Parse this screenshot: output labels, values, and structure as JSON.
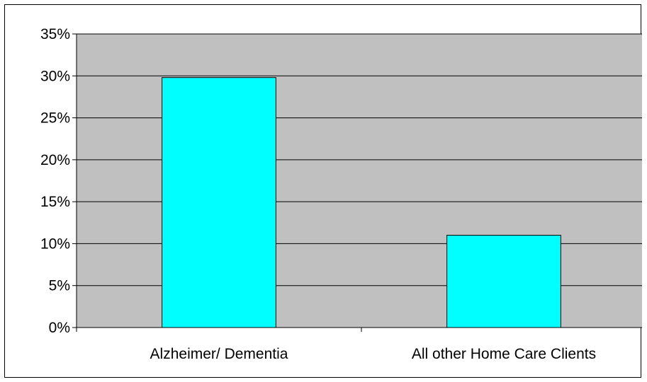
{
  "chart_data": {
    "type": "bar",
    "categories": [
      "Alzheimer/ Dementia",
      "All other Home Care Clients"
    ],
    "values": [
      29.8,
      11.0
    ],
    "y_unit": "%",
    "ylim": [
      0,
      35
    ],
    "y_ticks": [
      0,
      5,
      10,
      15,
      20,
      25,
      30,
      35
    ],
    "y_tick_labels": [
      "0%",
      "5%",
      "10%",
      "15%",
      "20%",
      "25%",
      "30%",
      "35%"
    ],
    "title": "",
    "xlabel": "",
    "ylabel": "",
    "grid": true,
    "legend": "none",
    "colors": {
      "bar_fill": "#00FFFF",
      "bar_stroke": "#000000",
      "plot_background": "#C0C0C0",
      "gridline": "#000000"
    }
  }
}
